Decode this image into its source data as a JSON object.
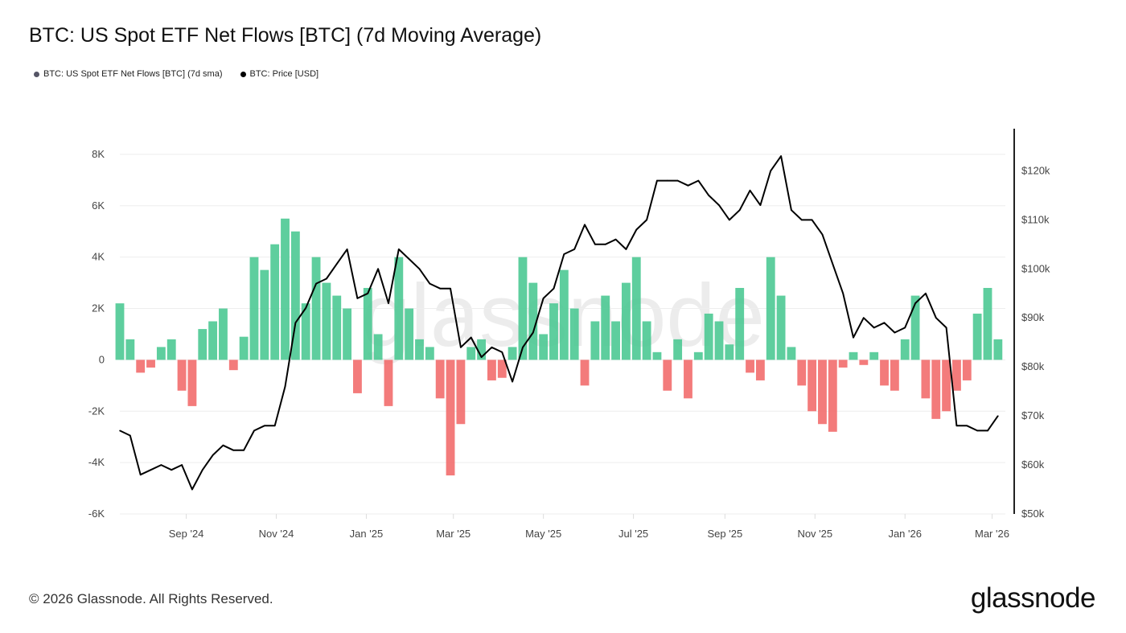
{
  "title": "BTC: US Spot ETF Net Flows [BTC] (7d Moving Average)",
  "footer": "© 2026 Glassnode. All Rights Reserved.",
  "logo": "glassnode",
  "watermark": "glassnode",
  "colors": {
    "inflow": "#4cc993",
    "outflow": "#f26d6d",
    "price": "#000000",
    "flows_legend": "#555566"
  },
  "chart_data": {
    "type": "bar+line",
    "title": "BTC: US Spot ETF Net Flows [BTC] (7d Moving Average)",
    "legend": [
      "BTC: US Spot ETF Net Flows [BTC] (7d sma)",
      "BTC: Price [USD]"
    ],
    "legend_position": "top-left",
    "grid": true,
    "x_range": [
      "2024-07-18",
      "2026-03-10"
    ],
    "x_ticks": [
      {
        "date": "2024-09-01",
        "label": "Sep '24"
      },
      {
        "date": "2024-11-01",
        "label": "Nov '24"
      },
      {
        "date": "2025-01-01",
        "label": "Jan '25"
      },
      {
        "date": "2025-03-01",
        "label": "Mar '25"
      },
      {
        "date": "2025-05-01",
        "label": "May '25"
      },
      {
        "date": "2025-07-01",
        "label": "Jul '25"
      },
      {
        "date": "2025-09-01",
        "label": "Sep '25"
      },
      {
        "date": "2025-11-01",
        "label": "Nov '25"
      },
      {
        "date": "2026-01-01",
        "label": "Jan '26"
      },
      {
        "date": "2026-03-01",
        "label": "Mar '26"
      }
    ],
    "y_left": {
      "range": [
        -6000,
        9000
      ],
      "ticks": [
        {
          "v": -6000,
          "label": "-6K"
        },
        {
          "v": -4000,
          "label": "-4K"
        },
        {
          "v": -2000,
          "label": "-2K"
        },
        {
          "v": 0,
          "label": "0"
        },
        {
          "v": 2000,
          "label": "2K"
        },
        {
          "v": 4000,
          "label": "4K"
        },
        {
          "v": 6000,
          "label": "6K"
        },
        {
          "v": 8000,
          "label": "8K"
        }
      ]
    },
    "y_right": {
      "range": [
        50000,
        128600
      ],
      "ticks": [
        {
          "v": 50000,
          "label": "$50k"
        },
        {
          "v": 60000,
          "label": "$60k"
        },
        {
          "v": 70000,
          "label": "$70k"
        },
        {
          "v": 80000,
          "label": "$80k"
        },
        {
          "v": 90000,
          "label": "$90k"
        },
        {
          "v": 100000,
          "label": "$100k"
        },
        {
          "v": 110000,
          "label": "$110k"
        },
        {
          "v": 120000,
          "label": "$120k"
        }
      ]
    },
    "dates": [
      "2024-07-18",
      "2024-07-25",
      "2024-08-01",
      "2024-08-08",
      "2024-08-15",
      "2024-08-22",
      "2024-08-29",
      "2024-09-05",
      "2024-09-12",
      "2024-09-19",
      "2024-09-26",
      "2024-10-03",
      "2024-10-10",
      "2024-10-17",
      "2024-10-24",
      "2024-10-31",
      "2024-11-07",
      "2024-11-14",
      "2024-11-21",
      "2024-11-28",
      "2024-12-05",
      "2024-12-12",
      "2024-12-19",
      "2024-12-26",
      "2025-01-02",
      "2025-01-09",
      "2025-01-16",
      "2025-01-23",
      "2025-01-30",
      "2025-02-06",
      "2025-02-13",
      "2025-02-20",
      "2025-02-27",
      "2025-03-06",
      "2025-03-13",
      "2025-03-20",
      "2025-03-27",
      "2025-04-03",
      "2025-04-10",
      "2025-04-17",
      "2025-04-24",
      "2025-05-01",
      "2025-05-08",
      "2025-05-15",
      "2025-05-22",
      "2025-05-29",
      "2025-06-05",
      "2025-06-12",
      "2025-06-19",
      "2025-06-26",
      "2025-07-03",
      "2025-07-10",
      "2025-07-17",
      "2025-07-24",
      "2025-07-31",
      "2025-08-07",
      "2025-08-14",
      "2025-08-21",
      "2025-08-28",
      "2025-09-04",
      "2025-09-11",
      "2025-09-18",
      "2025-09-25",
      "2025-10-02",
      "2025-10-09",
      "2025-10-16",
      "2025-10-23",
      "2025-10-30",
      "2025-11-06",
      "2025-11-13",
      "2025-11-20",
      "2025-11-27",
      "2025-12-04",
      "2025-12-11",
      "2025-12-18",
      "2025-12-25",
      "2026-01-01",
      "2026-01-08",
      "2026-01-15",
      "2026-01-22",
      "2026-01-29",
      "2026-02-05",
      "2026-02-12",
      "2026-02-19",
      "2026-02-26",
      "2026-03-05"
    ],
    "series": [
      {
        "name": "BTC: US Spot ETF Net Flows [BTC] (7d sma)",
        "type": "bar",
        "values": [
          2200,
          800,
          -500,
          -300,
          500,
          800,
          -1200,
          -1800,
          1200,
          1500,
          2000,
          -400,
          900,
          4000,
          3500,
          4500,
          5500,
          5000,
          2200,
          4000,
          3000,
          2500,
          2000,
          -1300,
          2800,
          1000,
          -1800,
          4000,
          2000,
          800,
          500,
          -1500,
          -4500,
          -2500,
          500,
          800,
          -800,
          -700,
          500,
          4000,
          3000,
          1000,
          2200,
          3500,
          2000,
          -1000,
          1500,
          2500,
          1500,
          3000,
          4000,
          1500,
          300,
          -1200,
          800,
          -1500,
          300,
          1800,
          1500,
          600,
          2800,
          -500,
          -800,
          4000,
          2500,
          500,
          -1000,
          -2000,
          -2500,
          -2800,
          -300,
          300,
          -200,
          300,
          -1000,
          -1200,
          800,
          2500,
          -1500,
          -2300,
          -2000,
          -1200,
          -800,
          1800,
          2800,
          800
        ]
      },
      {
        "name": "BTC: Price [USD]",
        "type": "line",
        "values": [
          67000,
          66000,
          58000,
          59000,
          60000,
          59000,
          60000,
          55000,
          59000,
          62000,
          64000,
          63000,
          63000,
          67000,
          68000,
          68000,
          76000,
          89000,
          92000,
          97000,
          98000,
          101000,
          104000,
          94000,
          95000,
          100000,
          93000,
          104000,
          102000,
          100000,
          97000,
          96000,
          96000,
          84000,
          86000,
          82000,
          84000,
          83000,
          77000,
          84000,
          87000,
          94000,
          96000,
          103000,
          104000,
          109000,
          105000,
          105000,
          106000,
          104000,
          108000,
          110000,
          118000,
          118000,
          118000,
          117000,
          118000,
          115000,
          113000,
          110000,
          112000,
          116000,
          113000,
          120000,
          123000,
          112000,
          110000,
          110000,
          107000,
          101000,
          95000,
          86000,
          90000,
          88000,
          89000,
          87000,
          88000,
          93000,
          95000,
          90000,
          88000,
          68000,
          68000,
          67000,
          67000,
          70000
        ]
      }
    ]
  }
}
